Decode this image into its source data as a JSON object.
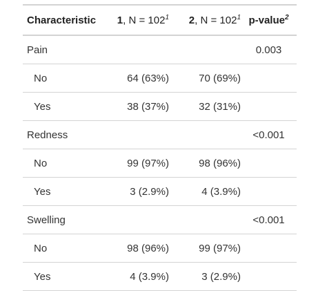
{
  "table": {
    "header": {
      "characteristic": "Characteristic",
      "group1": {
        "label": "1",
        "n_text": ", N = 102",
        "footnote": "1"
      },
      "group2": {
        "label": "2",
        "n_text": ", N = 102",
        "footnote": "1"
      },
      "pvalue": {
        "label": "p-value",
        "footnote": "2"
      }
    },
    "rows": [
      {
        "variable": "Pain",
        "p": "0.003",
        "levels": [
          {
            "label": "No",
            "g1": "64 (63%)",
            "g2": "70 (69%)"
          },
          {
            "label": "Yes",
            "g1": "38 (37%)",
            "g2": "32 (31%)"
          }
        ]
      },
      {
        "variable": "Redness",
        "p": "<0.001",
        "levels": [
          {
            "label": "No",
            "g1": "99 (97%)",
            "g2": "98 (96%)"
          },
          {
            "label": "Yes",
            "g1": "3 (2.9%)",
            "g2": "4 (3.9%)"
          }
        ]
      },
      {
        "variable": "Swelling",
        "p": "<0.001",
        "levels": [
          {
            "label": "No",
            "g1": "98 (96%)",
            "g2": "99 (97%)"
          },
          {
            "label": "Yes",
            "g1": "4 (3.9%)",
            "g2": "3 (2.9%)"
          }
        ]
      }
    ]
  }
}
